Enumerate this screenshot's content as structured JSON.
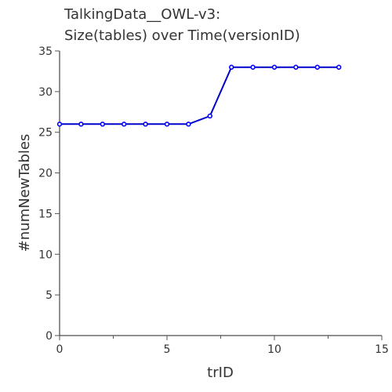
{
  "chart_data": {
    "type": "line",
    "title_lines": [
      "TalkingData__OWL-v3:",
      "Size(tables) over Time(versionID)"
    ],
    "xlabel": "trID",
    "ylabel": "#numNewTables",
    "xlim": [
      0,
      15
    ],
    "ylim": [
      0,
      35
    ],
    "x_ticks": [
      0,
      5,
      10,
      15
    ],
    "y_ticks": [
      0,
      5,
      10,
      15,
      20,
      25,
      30,
      35
    ],
    "x_minor_ticks": [
      2.5,
      7.5,
      12.5
    ],
    "grid": false,
    "line_color": "#0000cc",
    "marker_color": "#0000ff",
    "series": [
      {
        "x": [
          0,
          1,
          2,
          3,
          4,
          5,
          6,
          7,
          8,
          9,
          10,
          11,
          12,
          13
        ],
        "y": [
          26,
          26,
          26,
          26,
          26,
          26,
          26,
          27,
          33,
          33,
          33,
          33,
          33,
          33
        ]
      }
    ]
  }
}
